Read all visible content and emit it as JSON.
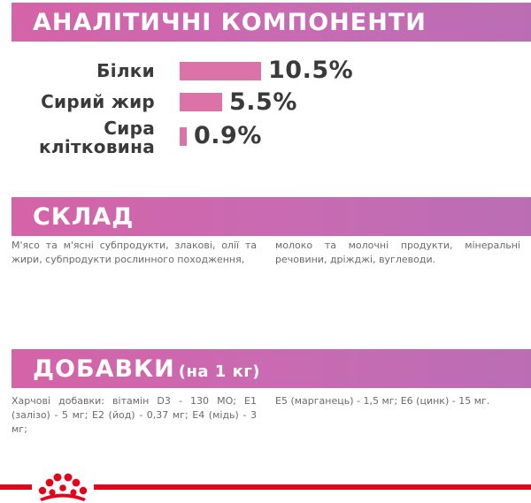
{
  "analytics": {
    "title": "АНАЛІТИЧНІ КОМПОНЕНТИ",
    "items": [
      {
        "label": "Білки",
        "value": "10.5%",
        "percent": 10.5
      },
      {
        "label": "Сирий жир",
        "value": "5.5%",
        "percent": 5.5
      },
      {
        "label_line1": "Сира",
        "label_line2": "клітковина",
        "value": "0.9%",
        "percent": 0.9
      }
    ]
  },
  "composition": {
    "title": "СКЛАД",
    "col1": "М'ясо та м'ясні субпродукти, злакові, олії та жири, субпродукти рослинного походження,",
    "col2": "молоко та молочні продукти, мінеральні речовини, дріжджі, вуглеводи."
  },
  "additives": {
    "title": "ДОБАВКИ",
    "title_suffix": "(на 1 кг)",
    "col1": "Харчові добавки: вітамін D3 - 130 МО; E1 (залізо) - 5 мг; E2 (йод) - 0,37 мг; E4 (мідь) - 3 мг;",
    "col2": "E5 (марганець) - 1,5 мг; E6 (цинк) - 15 мг."
  },
  "colors": {
    "band": "#c86bb3",
    "bar": "#db72a8",
    "footer_line": "#e3051b",
    "text_dark": "#3a3a3a",
    "text_body": "#6a6a6a"
  },
  "footer": {
    "logo_icon": "royal-canin-crown-icon"
  }
}
